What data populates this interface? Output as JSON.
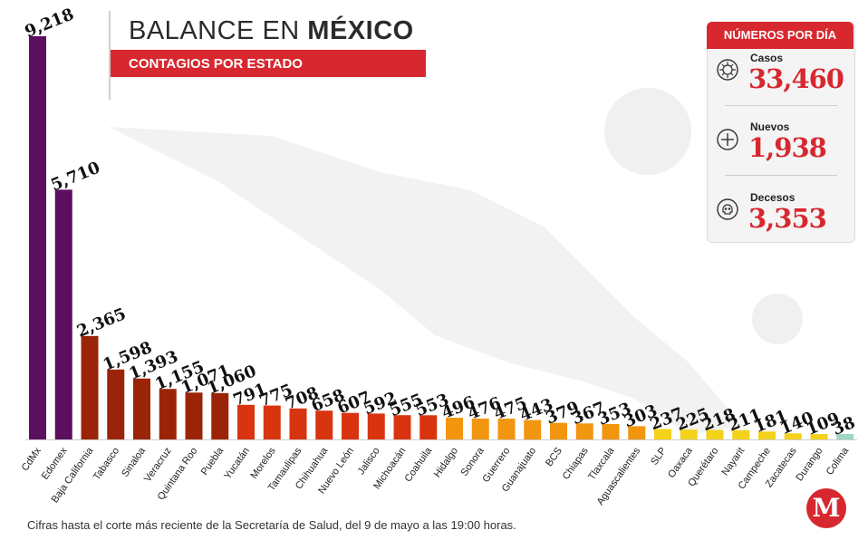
{
  "header": {
    "title_light": "BALANCE EN",
    "title_bold": "MÉXICO",
    "subtitle": "CONTAGIOS POR ESTADO"
  },
  "stats": {
    "header": "NÚMEROS POR DÍA",
    "casos_label": "Casos",
    "casos_value": "33,460",
    "nuevos_label": "Nuevos",
    "nuevos_value": "1,938",
    "decesos_label": "Decesos",
    "decesos_value": "3,353"
  },
  "footnote": "Cifras hasta el corte más reciente de la Secretaría de Salud, del 9 de mayo a las 19:00 horas.",
  "logo": "M",
  "colors": {
    "accent_red": "#d7282f",
    "purple": "#5c0f5e",
    "dark_red": "#9b2408",
    "red": "#d93410",
    "orange": "#f2950f",
    "yellow": "#f4d21a",
    "teal": "#9fd7c6"
  },
  "chart_data": {
    "type": "bar",
    "categories": [
      "CdMx",
      "Edomex",
      "Baja California",
      "Tabasco",
      "Sinaloa",
      "Veracruz",
      "Quintana Roo",
      "Puebla",
      "Yucatán",
      "Morelos",
      "Tamaulipas",
      "Chihuahua",
      "Nuevo León",
      "Jalisco",
      "Michoacán",
      "Coahuila",
      "Hidalgo",
      "Sonora",
      "Guerrero",
      "Guanajuato",
      "BCS",
      "Chiapas",
      "Tlaxcala",
      "Aguascalientes",
      "SLP",
      "Oaxaca",
      "Querétaro",
      "Nayarit",
      "Campeche",
      "Zacatecas",
      "Durango",
      "Colima"
    ],
    "values": [
      9218,
      5710,
      2365,
      1598,
      1393,
      1155,
      1071,
      1060,
      791,
      775,
      708,
      658,
      607,
      592,
      555,
      553,
      496,
      476,
      475,
      443,
      379,
      367,
      353,
      303,
      237,
      225,
      218,
      211,
      181,
      140,
      109,
      38
    ],
    "value_labels": [
      "9,218",
      "5,710",
      "2,365",
      "1,598",
      "1,393",
      "1,155",
      "1,071",
      "1,060",
      "791",
      "775",
      "708",
      "658",
      "607",
      "592",
      "555",
      "553",
      "496",
      "476",
      "475",
      "443",
      "379",
      "367",
      "353",
      "303",
      "237",
      "225",
      "218",
      "211",
      "181",
      "140",
      "109",
      "38"
    ],
    "bar_colors": [
      "#5c0f5e",
      "#5c0f5e",
      "#9b2408",
      "#9b2408",
      "#9b2408",
      "#9b2408",
      "#9b2408",
      "#9b2408",
      "#d93410",
      "#d93410",
      "#d93410",
      "#d93410",
      "#d93410",
      "#d93410",
      "#d93410",
      "#d93410",
      "#f2950f",
      "#f2950f",
      "#f2950f",
      "#f2950f",
      "#f2950f",
      "#f2950f",
      "#f2950f",
      "#f2950f",
      "#f4d21a",
      "#f4d21a",
      "#f4d21a",
      "#f4d21a",
      "#f4d21a",
      "#f4d21a",
      "#f4d21a",
      "#9fd7c6"
    ],
    "title": "BALANCE EN MÉXICO",
    "subtitle": "CONTAGIOS POR ESTADO",
    "xlabel": "",
    "ylabel": "",
    "grid": false
  }
}
